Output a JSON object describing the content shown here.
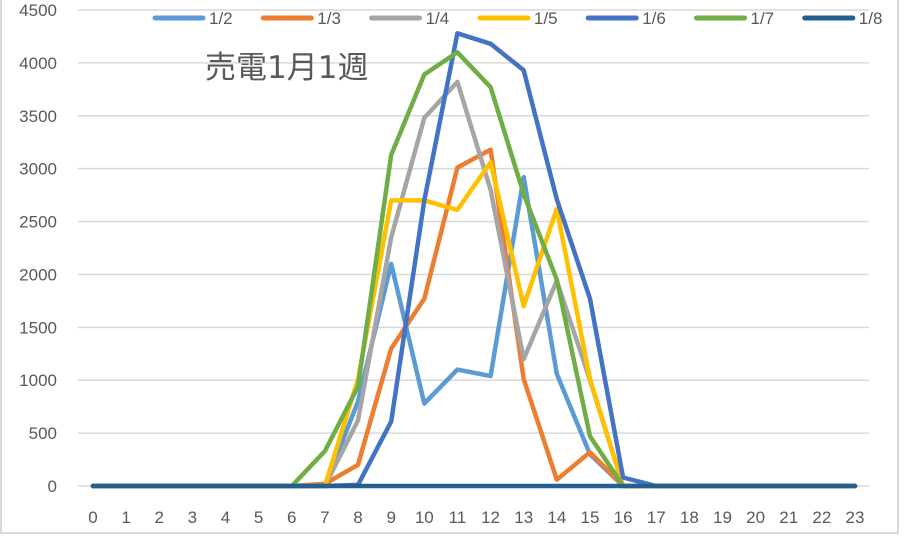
{
  "chart_data": {
    "type": "line",
    "title": "売電1月1週",
    "xlabel": "",
    "ylabel": "",
    "x": [
      0,
      1,
      2,
      3,
      4,
      5,
      6,
      7,
      8,
      9,
      10,
      11,
      12,
      13,
      14,
      15,
      16,
      17,
      18,
      19,
      20,
      21,
      22,
      23
    ],
    "ylim": [
      0,
      4500
    ],
    "yticks": [
      0,
      500,
      1000,
      1500,
      2000,
      2500,
      3000,
      3500,
      4000,
      4500
    ],
    "grid": true,
    "legend_position": "top",
    "series": [
      {
        "name": "1/2",
        "color": "#5B9BD5",
        "values": [
          0,
          0,
          0,
          0,
          0,
          0,
          0,
          0,
          800,
          2100,
          780,
          1100,
          1040,
          2920,
          1060,
          300,
          0,
          0,
          0,
          0,
          0,
          0,
          0,
          0
        ]
      },
      {
        "name": "1/3",
        "color": "#ED7D31",
        "values": [
          0,
          0,
          0,
          0,
          0,
          0,
          0,
          20,
          200,
          1300,
          1770,
          3010,
          3180,
          1010,
          60,
          320,
          0,
          0,
          0,
          0,
          0,
          0,
          0,
          0
        ]
      },
      {
        "name": "1/4",
        "color": "#A5A5A5",
        "values": [
          0,
          0,
          0,
          0,
          0,
          0,
          0,
          0,
          620,
          2350,
          3480,
          3820,
          2800,
          1200,
          1940,
          1000,
          0,
          0,
          0,
          0,
          0,
          0,
          0,
          0
        ]
      },
      {
        "name": "1/5",
        "color": "#FFC000",
        "values": [
          0,
          0,
          0,
          0,
          0,
          0,
          0,
          0,
          1010,
          2700,
          2700,
          2610,
          3060,
          1700,
          2620,
          1010,
          0,
          0,
          0,
          0,
          0,
          0,
          0,
          0
        ]
      },
      {
        "name": "1/6",
        "color": "#4472C4",
        "values": [
          0,
          0,
          0,
          0,
          0,
          0,
          0,
          0,
          10,
          610,
          2700,
          4280,
          4180,
          3930,
          2710,
          1770,
          80,
          0,
          0,
          0,
          0,
          0,
          0,
          0
        ]
      },
      {
        "name": "1/7",
        "color": "#70AD47",
        "values": [
          0,
          0,
          0,
          0,
          0,
          0,
          0,
          330,
          940,
          3130,
          3890,
          4100,
          3770,
          2760,
          1950,
          470,
          0,
          0,
          0,
          0,
          0,
          0,
          0,
          0
        ]
      },
      {
        "name": "1/8",
        "color": "#255E91",
        "values": [
          0,
          0,
          0,
          0,
          0,
          0,
          0,
          0,
          0,
          0,
          0,
          0,
          0,
          0,
          0,
          0,
          0,
          0,
          0,
          0,
          0,
          0,
          0,
          0
        ]
      }
    ]
  },
  "colors": {
    "grid": "#d9d9d9",
    "text": "#595959",
    "border": "#d9d9d9"
  }
}
